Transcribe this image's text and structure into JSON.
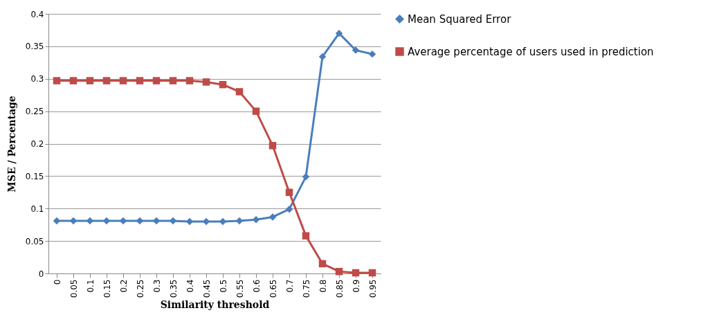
{
  "chart_data": {
    "type": "line",
    "xlabel": "Similarity threshold",
    "ylabel": "MSE / Percentage",
    "categories": [
      "0",
      "0.05",
      "0.1",
      "0.15",
      "0.2",
      "0.25",
      "0.3",
      "0.35",
      "0.4",
      "0.45",
      "0.5",
      "0.55",
      "0.6",
      "0.65",
      "0.7",
      "0.75",
      "0.8",
      "0.85",
      "0.9",
      "0.95"
    ],
    "series": [
      {
        "name": "Mean Squared Error",
        "color": "#4a7ebb",
        "marker": "diamond",
        "values": [
          0.081,
          0.081,
          0.081,
          0.081,
          0.081,
          0.081,
          0.081,
          0.081,
          0.08,
          0.08,
          0.08,
          0.081,
          0.083,
          0.087,
          0.099,
          0.149,
          0.334,
          0.37,
          0.344,
          0.338
        ]
      },
      {
        "name": "Average percentage of users used in prediction",
        "color": "#be4b48",
        "marker": "square",
        "values": [
          0.297,
          0.297,
          0.297,
          0.297,
          0.297,
          0.297,
          0.297,
          0.297,
          0.297,
          0.295,
          0.291,
          0.28,
          0.25,
          0.197,
          0.125,
          0.058,
          0.015,
          0.003,
          0.001,
          0.001
        ]
      }
    ],
    "ylim": [
      0,
      0.4
    ],
    "yticks": [
      0,
      0.05,
      0.1,
      0.15,
      0.2,
      0.25,
      0.3,
      0.35,
      0.4
    ],
    "grid": "y",
    "legend": "right",
    "line_style": "solid"
  }
}
